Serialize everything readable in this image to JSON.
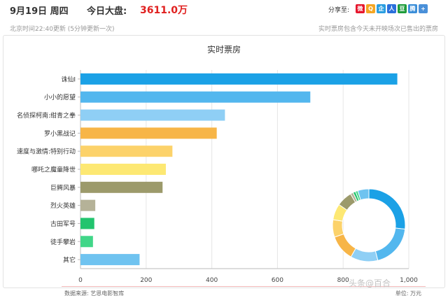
{
  "header": {
    "date": "9月19日 周四",
    "total_label": "今日大盘:",
    "total_value": "3611.0万",
    "share_label": "分享至:",
    "share_icons": [
      "weibo-icon",
      "qzone-icon",
      "qq-icon",
      "renren-icon",
      "douban-icon",
      "tencent-weibo-icon",
      "more-share-icon"
    ],
    "update_text": "北京时间22:40更新 (5分钟更新一次)",
    "note_text": "实时票房包含今天未开映场次已售出的票房"
  },
  "colors": {
    "accent": "#e0201f",
    "bars": [
      "#1ba1e6",
      "#53b7ee",
      "#8fcff5",
      "#f7b547",
      "#fcd26a",
      "#fde873",
      "#9c9a6b",
      "#b5b298",
      "#22c46e",
      "#41d688",
      "#6fc3f0"
    ]
  },
  "chart_data": {
    "type": "bar",
    "orientation": "horizontal",
    "title": "实时票房",
    "categories": [
      "诛仙Ⅰ",
      "小小的愿望",
      "名侦探柯南:绀青之拳",
      "罗小黑战记",
      "速度与激情:特别行动",
      "哪吒之魔童降世",
      "巨鳄风暴",
      "烈火英雄",
      "古田军号",
      "徒手攀岩",
      "其它"
    ],
    "values": [
      965,
      700,
      440,
      415,
      280,
      260,
      250,
      45,
      42,
      38,
      180
    ],
    "xlim": [
      0,
      1000
    ],
    "xticks": [
      "0",
      "200",
      "400",
      "600",
      "800",
      "1,000"
    ],
    "grid": true,
    "donut": {
      "values": [
        965,
        700,
        440,
        415,
        280,
        260,
        250,
        45,
        42,
        38,
        180
      ]
    }
  },
  "footer": {
    "source": "数据来源: 艺恩电影智库",
    "unit": "单位: 万元",
    "watermark": "头条@百合"
  }
}
